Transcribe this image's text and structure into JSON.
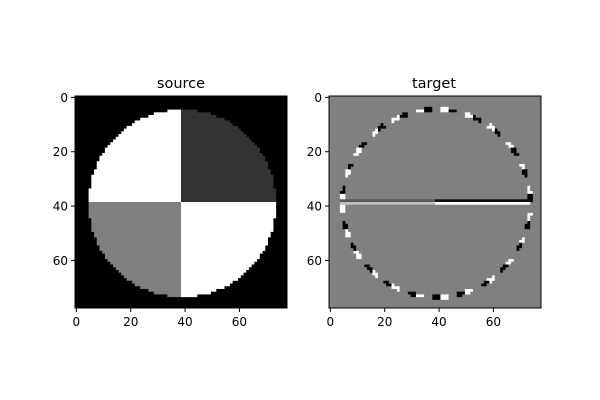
{
  "figure": {
    "background": "#ffffff"
  },
  "chart_data": [
    {
      "type": "heatmap",
      "title": "source",
      "colormap": "gray",
      "image_shape": [
        78,
        78
      ],
      "xlim": [
        -0.5,
        77.5
      ],
      "ylim": [
        77.5,
        -0.5
      ],
      "xticks": [
        0,
        20,
        40,
        60
      ],
      "yticks": [
        0,
        20,
        40,
        60
      ],
      "content": {
        "background_value": 0.0,
        "disk": {
          "center": [
            39,
            39
          ],
          "radius": 34.5
        },
        "quadrants": [
          {
            "name": "top-left",
            "value": 1.0
          },
          {
            "name": "top-right",
            "value": 0.2
          },
          {
            "name": "bottom-left",
            "value": 0.5
          },
          {
            "name": "bottom-right",
            "value": 1.0
          }
        ]
      }
    },
    {
      "type": "heatmap",
      "title": "target",
      "colormap": "gray",
      "image_shape": [
        78,
        78
      ],
      "xlim": [
        -0.5,
        77.5
      ],
      "ylim": [
        77.5,
        -0.5
      ],
      "xticks": [
        0,
        20,
        40,
        60
      ],
      "yticks": [
        0,
        20,
        40,
        60
      ],
      "content": {
        "background_value": 0.5,
        "edge_ring": {
          "center": [
            39,
            39
          ],
          "radius": 34.5
        },
        "horizontal_edge": {
          "row": 38.5,
          "x_range": [
            4,
            73
          ]
        }
      }
    }
  ]
}
